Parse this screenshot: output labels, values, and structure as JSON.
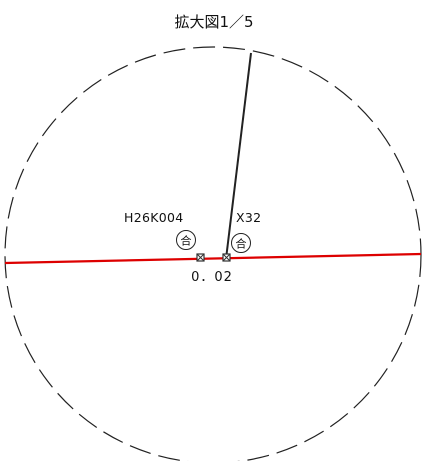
{
  "title": "拡大図1／5",
  "points": {
    "left_label": "H26K004",
    "right_label": "X32",
    "left_mark": "合",
    "right_mark": "合"
  },
  "distance_label": "0．02",
  "colors": {
    "boundary_line": "#dd0000",
    "other_line": "#222222",
    "circle": "#222222",
    "marker": "#333333"
  },
  "icons": {
    "point_marker": "square-cross-marker",
    "stamp": "circled-character"
  }
}
